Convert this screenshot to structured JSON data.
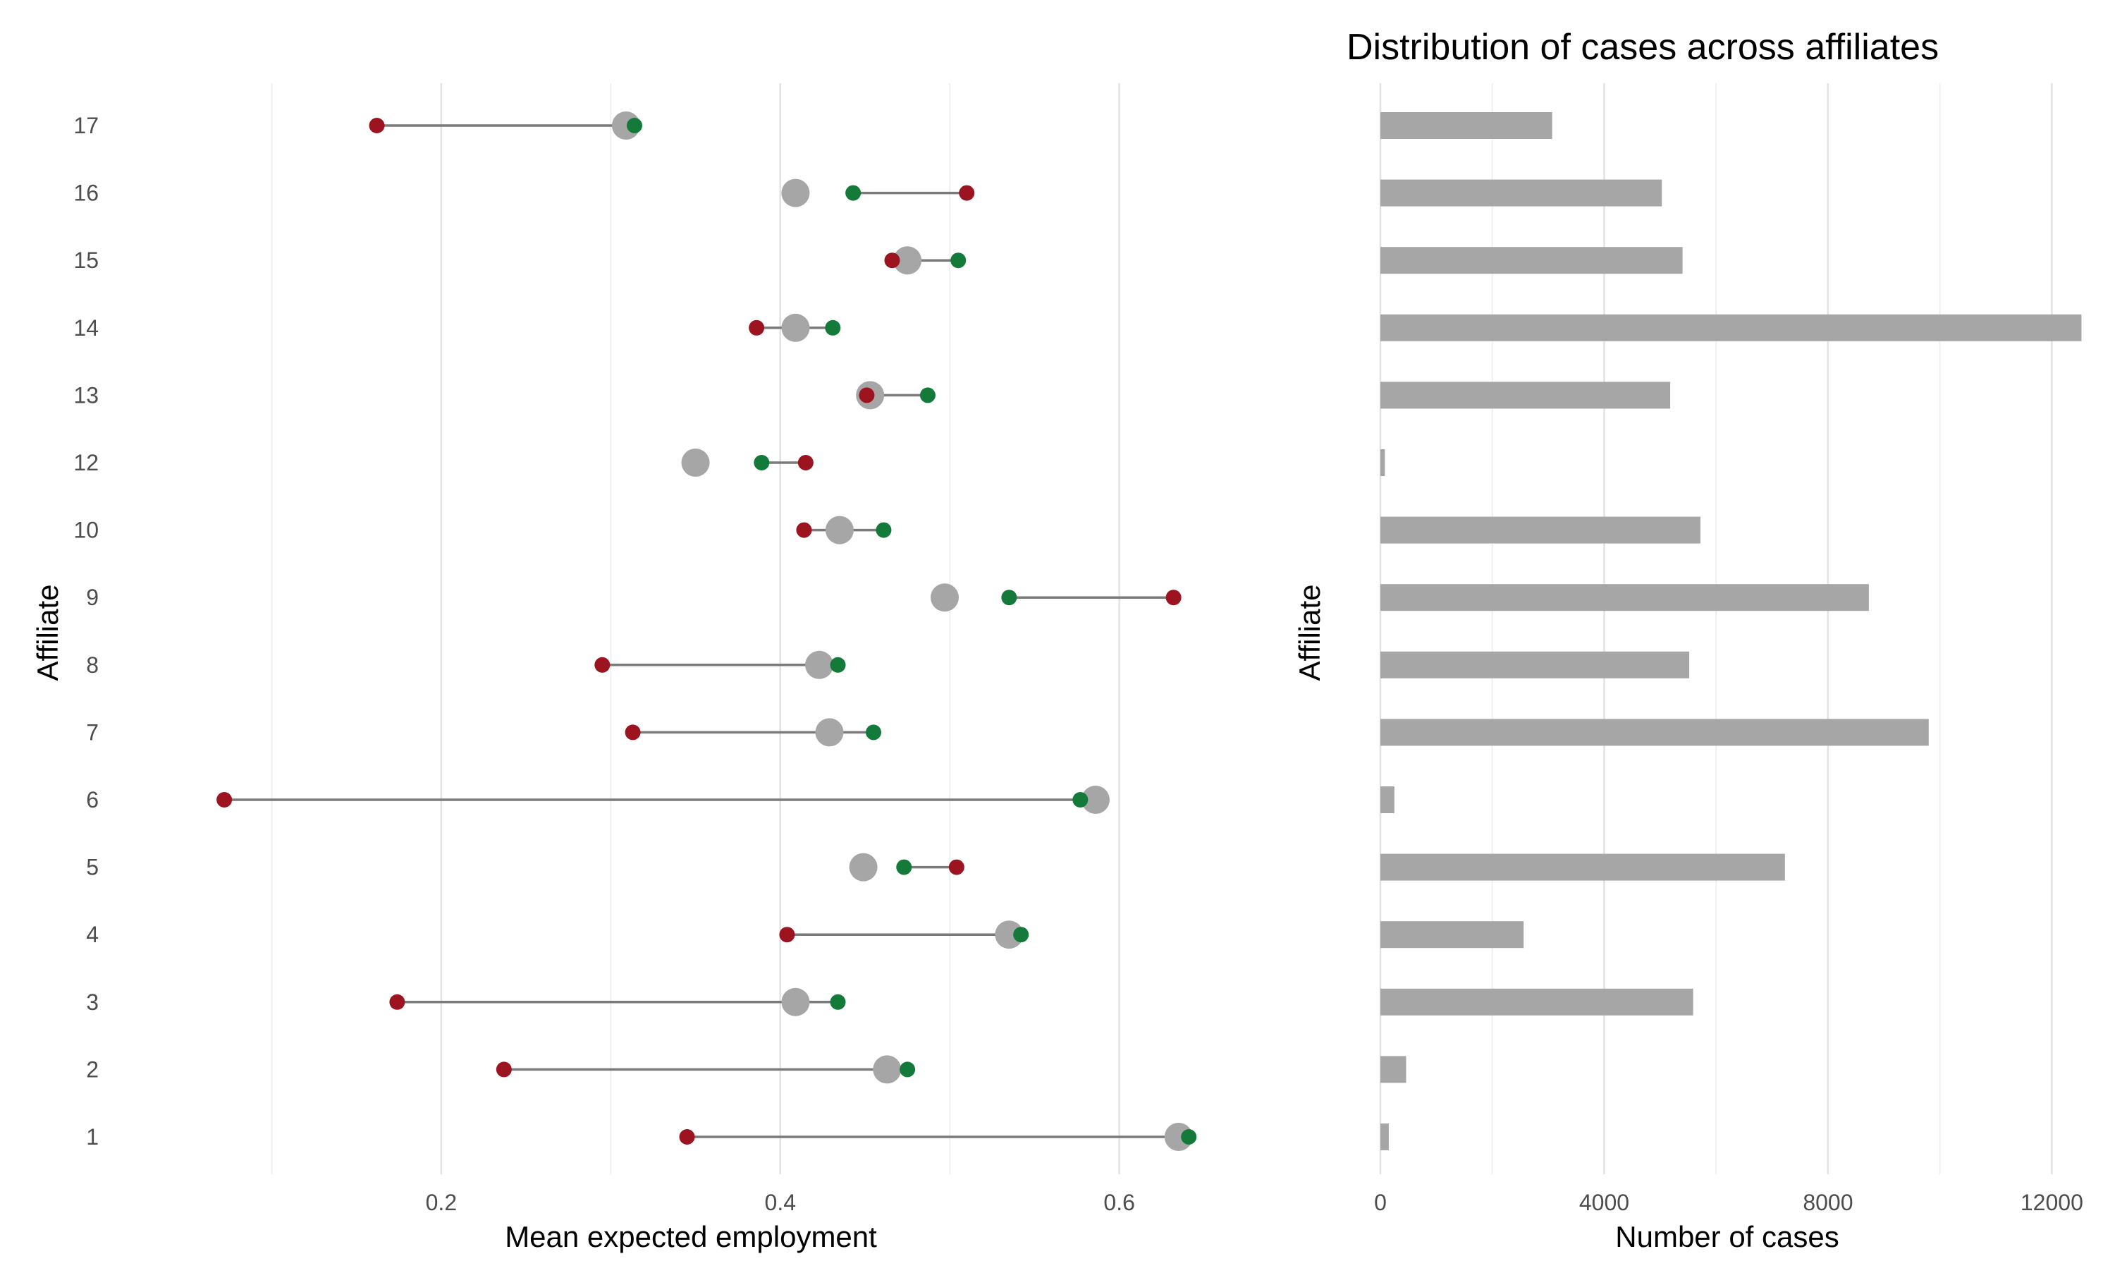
{
  "colors": {
    "background": "#ffffff",
    "grid_major": "#e2e2e2",
    "grid_minor": "#f0f0f0",
    "segment": "#7a7a7a",
    "mean_point": "#a6a6a6",
    "low_point": "#9c1420",
    "high_point": "#137a3a",
    "bar": "#a6a6a6",
    "tick_text": "#4d4d4d",
    "title_text": "#000000"
  },
  "chart_data": [
    {
      "type": "dumbbell",
      "title": "",
      "xlabel": "Mean expected employment",
      "ylabel": "Affiliate",
      "xlim": [
        0.0,
        0.68
      ],
      "xticks": [
        "0.2",
        "0.4",
        "0.6"
      ],
      "grid": true,
      "legend": "none",
      "categories": [
        "1",
        "2",
        "3",
        "4",
        "5",
        "6",
        "7",
        "8",
        "9",
        "10",
        "12",
        "13",
        "14",
        "15",
        "16",
        "17"
      ],
      "series": [
        {
          "role": "red point",
          "values": [
            0.345,
            0.237,
            0.174,
            0.404,
            0.504,
            0.072,
            0.313,
            0.295,
            0.632,
            0.414,
            0.415,
            0.451,
            0.386,
            0.466,
            0.51,
            0.162
          ]
        },
        {
          "role": "green point",
          "values": [
            0.641,
            0.475,
            0.434,
            0.542,
            0.473,
            0.577,
            0.455,
            0.434,
            0.535,
            0.461,
            0.389,
            0.487,
            0.431,
            0.505,
            0.443,
            0.314
          ]
        },
        {
          "role": "grey point",
          "values": [
            0.635,
            0.463,
            0.409,
            0.535,
            0.449,
            0.586,
            0.429,
            0.423,
            0.497,
            0.435,
            0.35,
            0.453,
            0.409,
            0.475,
            0.409,
            0.309
          ]
        }
      ]
    },
    {
      "type": "bar",
      "orientation": "horizontal",
      "title": "Distribution of cases across affiliates",
      "xlabel": "Number of cases",
      "ylabel": "Affiliate",
      "xlim": [
        0,
        12600
      ],
      "xticks": [
        "0",
        "4000",
        "8000",
        "12000"
      ],
      "grid": true,
      "legend": "none",
      "categories": [
        "1",
        "2",
        "3",
        "4",
        "5",
        "6",
        "7",
        "8",
        "9",
        "10",
        "12",
        "13",
        "14",
        "15",
        "16",
        "17"
      ],
      "values": [
        150,
        460,
        5590,
        2560,
        7230,
        250,
        9800,
        5520,
        8730,
        5720,
        80,
        5180,
        12530,
        5400,
        5030,
        3070
      ]
    }
  ]
}
